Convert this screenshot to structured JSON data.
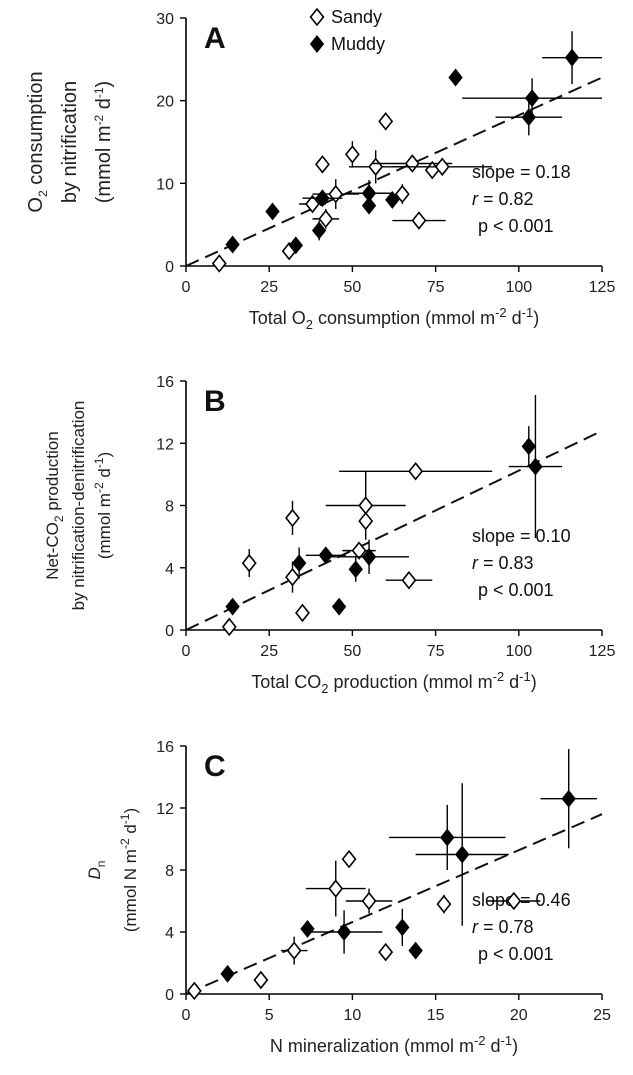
{
  "legend": [
    {
      "label": "Sandy",
      "marker": "open-diamond"
    },
    {
      "label": "Muddy",
      "marker": "filled-diamond"
    }
  ],
  "chart_data": [
    {
      "panel": "A",
      "type": "scatter",
      "xlabel_parts": {
        "pre": "Total O",
        "sub": "2",
        "mid": " consumption (mmol m",
        "sup1": "-2",
        "mid2": " d",
        "sup2": "-1",
        "post": ")"
      },
      "ylabel_lines": [
        {
          "pre": "O",
          "sub": "2",
          "post": " consumption"
        },
        {
          "pre": "by nitrification",
          "sub": "",
          "post": ""
        },
        {
          "pre": "(mmol m",
          "sup1": "-2",
          "mid": " d",
          "sup2": "-1",
          "post": ")"
        }
      ],
      "xlim": [
        0,
        125
      ],
      "ylim": [
        0,
        30
      ],
      "xticks": [
        0,
        25,
        50,
        75,
        100,
        125
      ],
      "yticks": [
        0,
        10,
        20,
        30
      ],
      "xtick_labels": [
        "0",
        "25",
        "50",
        "75",
        "100",
        "125"
      ],
      "ytick_labels": [
        "0",
        "10",
        "20",
        "30"
      ],
      "fit": {
        "slope": 0.18,
        "x0": 0,
        "y0": 0,
        "x1": 125,
        "y1": 22.8
      },
      "stats": {
        "slope_label": "slope = 0.18",
        "r_label": "r",
        "r_value": " = 0.82",
        "p_label": "p < 0.001"
      },
      "series": [
        {
          "name": "Sandy",
          "points": [
            {
              "x": 10,
              "y": 0.3,
              "xerr": 0,
              "yerr": 0
            },
            {
              "x": 31,
              "y": 1.8,
              "xerr": 0,
              "yerr": 0
            },
            {
              "x": 38,
              "y": 7.5,
              "xerr": 4,
              "yerr": 0
            },
            {
              "x": 41,
              "y": 12.3,
              "xerr": 0,
              "yerr": 0
            },
            {
              "x": 42,
              "y": 5.7,
              "xerr": 4,
              "yerr": 1.2
            },
            {
              "x": 45,
              "y": 8.7,
              "xerr": 7,
              "yerr": 1.8
            },
            {
              "x": 50,
              "y": 13.5,
              "xerr": 0,
              "yerr": 1.6
            },
            {
              "x": 57,
              "y": 12.0,
              "xerr": 8,
              "yerr": 2
            },
            {
              "x": 60,
              "y": 17.5,
              "xerr": 0,
              "yerr": 0
            },
            {
              "x": 65,
              "y": 8.7,
              "xerr": 0,
              "yerr": 1.2
            },
            {
              "x": 68,
              "y": 12.4,
              "xerr": 12,
              "yerr": 0
            },
            {
              "x": 70,
              "y": 5.5,
              "xerr": 8,
              "yerr": 0
            },
            {
              "x": 74,
              "y": 11.6,
              "xerr": 0,
              "yerr": 0
            },
            {
              "x": 77,
              "y": 12.0,
              "xerr": 15,
              "yerr": 0
            }
          ]
        },
        {
          "name": "Muddy",
          "points": [
            {
              "x": 14,
              "y": 2.6,
              "xerr": 0,
              "yerr": 0
            },
            {
              "x": 26,
              "y": 6.6,
              "xerr": 0,
              "yerr": 0
            },
            {
              "x": 33,
              "y": 2.5,
              "xerr": 0,
              "yerr": 0
            },
            {
              "x": 40,
              "y": 4.3,
              "xerr": 0,
              "yerr": 1.2
            },
            {
              "x": 41,
              "y": 8.2,
              "xerr": 6,
              "yerr": 0
            },
            {
              "x": 55,
              "y": 7.3,
              "xerr": 0,
              "yerr": 0
            },
            {
              "x": 55,
              "y": 8.8,
              "xerr": 7,
              "yerr": 1.6
            },
            {
              "x": 62,
              "y": 8.0,
              "xerr": 0,
              "yerr": 0
            },
            {
              "x": 81,
              "y": 22.8,
              "xerr": 0,
              "yerr": 0
            },
            {
              "x": 103,
              "y": 18.0,
              "xerr": 10,
              "yerr": 2.2
            },
            {
              "x": 104,
              "y": 20.3,
              "xerr": 21,
              "yerr": 2.4
            },
            {
              "x": 116,
              "y": 25.2,
              "xerr": 9,
              "yerr": 3.2
            }
          ]
        }
      ]
    },
    {
      "panel": "B",
      "type": "scatter",
      "xlabel_parts": {
        "pre": "Total CO",
        "sub": "2",
        "mid": " production (mmol m",
        "sup1": "-2",
        "mid2": " d",
        "sup2": "-1",
        "post": ")"
      },
      "ylabel_lines": [
        {
          "pre": "Net-CO",
          "sub": "2",
          "post": " production"
        },
        {
          "pre": "by nitrification-denitrification",
          "sub": "",
          "post": ""
        },
        {
          "pre": "(mmol m",
          "sup1": "-2",
          "mid": " d",
          "sup2": "-1",
          "post": ")"
        }
      ],
      "xlim": [
        0,
        125
      ],
      "ylim": [
        0,
        16
      ],
      "xticks": [
        0,
        25,
        50,
        75,
        100,
        125
      ],
      "yticks": [
        0,
        4,
        8,
        12,
        16
      ],
      "xtick_labels": [
        "0",
        "25",
        "50",
        "75",
        "100",
        "125"
      ],
      "ytick_labels": [
        "0",
        "4",
        "8",
        "12",
        "16"
      ],
      "fit": {
        "slope": 0.1,
        "x0": 0,
        "y0": 0,
        "x1": 125,
        "y1": 12.8
      },
      "stats": {
        "slope_label": "slope = 0.10",
        "r_label": "r",
        "r_value": " = 0.83",
        "p_label": "p < 0.001"
      },
      "series": [
        {
          "name": "Sandy",
          "points": [
            {
              "x": 13,
              "y": 0.2,
              "xerr": 0,
              "yerr": 0
            },
            {
              "x": 19,
              "y": 4.3,
              "xerr": 0,
              "yerr": 0.9
            },
            {
              "x": 32,
              "y": 7.2,
              "xerr": 0,
              "yerr": 1.1
            },
            {
              "x": 32,
              "y": 3.4,
              "xerr": 0,
              "yerr": 1.0
            },
            {
              "x": 35,
              "y": 1.1,
              "xerr": 0,
              "yerr": 0
            },
            {
              "x": 52,
              "y": 5.1,
              "xerr": 5,
              "yerr": 0
            },
            {
              "x": 54,
              "y": 8.0,
              "xerr": 12,
              "yerr": 2.2
            },
            {
              "x": 54,
              "y": 7.0,
              "xerr": 0,
              "yerr": 0
            },
            {
              "x": 67,
              "y": 3.2,
              "xerr": 7,
              "yerr": 0
            },
            {
              "x": 69,
              "y": 10.2,
              "xerr": 23,
              "yerr": 0
            }
          ]
        },
        {
          "name": "Muddy",
          "points": [
            {
              "x": 14,
              "y": 1.5,
              "xerr": 0,
              "yerr": 0
            },
            {
              "x": 34,
              "y": 4.3,
              "xerr": 0,
              "yerr": 1.0
            },
            {
              "x": 42,
              "y": 4.8,
              "xerr": 6,
              "yerr": 0
            },
            {
              "x": 46,
              "y": 1.5,
              "xerr": 0,
              "yerr": 0
            },
            {
              "x": 51,
              "y": 3.9,
              "xerr": 0,
              "yerr": 0.8
            },
            {
              "x": 55,
              "y": 4.7,
              "xerr": 12,
              "yerr": 1.1
            },
            {
              "x": 103,
              "y": 11.8,
              "xerr": 0,
              "yerr": 1.3
            },
            {
              "x": 105,
              "y": 10.5,
              "xerr": 8,
              "yerr": 4.6
            }
          ]
        }
      ]
    },
    {
      "panel": "C",
      "type": "scatter",
      "xlabel_parts": {
        "pre": "N mineralization (mmol m",
        "sub": "",
        "mid": "",
        "sup1": "-2",
        "mid2": " d",
        "sup2": "-1",
        "post": ")"
      },
      "ylabel_lines": [
        {
          "pre": "D",
          "sub": "n",
          "post": "",
          "italic": true
        },
        {
          "pre": "(mmol N m",
          "sup1": "-2",
          "mid": " d",
          "sup2": "-1",
          "post": ")"
        }
      ],
      "xlim": [
        0,
        25
      ],
      "ylim": [
        0,
        16
      ],
      "xticks": [
        0,
        5,
        10,
        15,
        20,
        25
      ],
      "yticks": [
        0,
        4,
        8,
        12,
        16
      ],
      "xtick_labels": [
        "0",
        "5",
        "10",
        "15",
        "20",
        "25"
      ],
      "ytick_labels": [
        "0",
        "4",
        "8",
        "12",
        "16"
      ],
      "fit": {
        "slope": 0.46,
        "x0": 0,
        "y0": 0,
        "x1": 25,
        "y1": 11.6
      },
      "stats": {
        "slope_label": "slope = 0.46",
        "r_label": "r",
        "r_value": " = 0.78",
        "p_label": "p < 0.001"
      },
      "series": [
        {
          "name": "Sandy",
          "points": [
            {
              "x": 0.5,
              "y": 0.2,
              "xerr": 0,
              "yerr": 0
            },
            {
              "x": 4.5,
              "y": 0.9,
              "xerr": 0,
              "yerr": 0
            },
            {
              "x": 6.5,
              "y": 2.8,
              "xerr": 0.8,
              "yerr": 0.9
            },
            {
              "x": 9.0,
              "y": 6.8,
              "xerr": 1.8,
              "yerr": 1.8
            },
            {
              "x": 9.8,
              "y": 8.7,
              "xerr": 0,
              "yerr": 0
            },
            {
              "x": 11.0,
              "y": 6.0,
              "xerr": 1.4,
              "yerr": 0.8
            },
            {
              "x": 12.0,
              "y": 2.7,
              "xerr": 0,
              "yerr": 0
            },
            {
              "x": 15.5,
              "y": 5.8,
              "xerr": 0,
              "yerr": 0.6
            },
            {
              "x": 19.7,
              "y": 6.0,
              "xerr": 1.6,
              "yerr": 0
            }
          ]
        },
        {
          "name": "Muddy",
          "points": [
            {
              "x": 2.5,
              "y": 1.3,
              "xerr": 0,
              "yerr": 0
            },
            {
              "x": 7.3,
              "y": 4.2,
              "xerr": 0,
              "yerr": 0
            },
            {
              "x": 9.5,
              "y": 4.0,
              "xerr": 2.3,
              "yerr": 1.4
            },
            {
              "x": 13.0,
              "y": 4.3,
              "xerr": 0,
              "yerr": 1.2
            },
            {
              "x": 13.8,
              "y": 2.8,
              "xerr": 0,
              "yerr": 0
            },
            {
              "x": 15.7,
              "y": 10.1,
              "xerr": 3.5,
              "yerr": 2.1
            },
            {
              "x": 16.6,
              "y": 9.0,
              "xerr": 2.8,
              "yerr": 4.6
            },
            {
              "x": 23.0,
              "y": 12.6,
              "xerr": 1.7,
              "yerr": 3.2
            }
          ]
        }
      ]
    }
  ]
}
